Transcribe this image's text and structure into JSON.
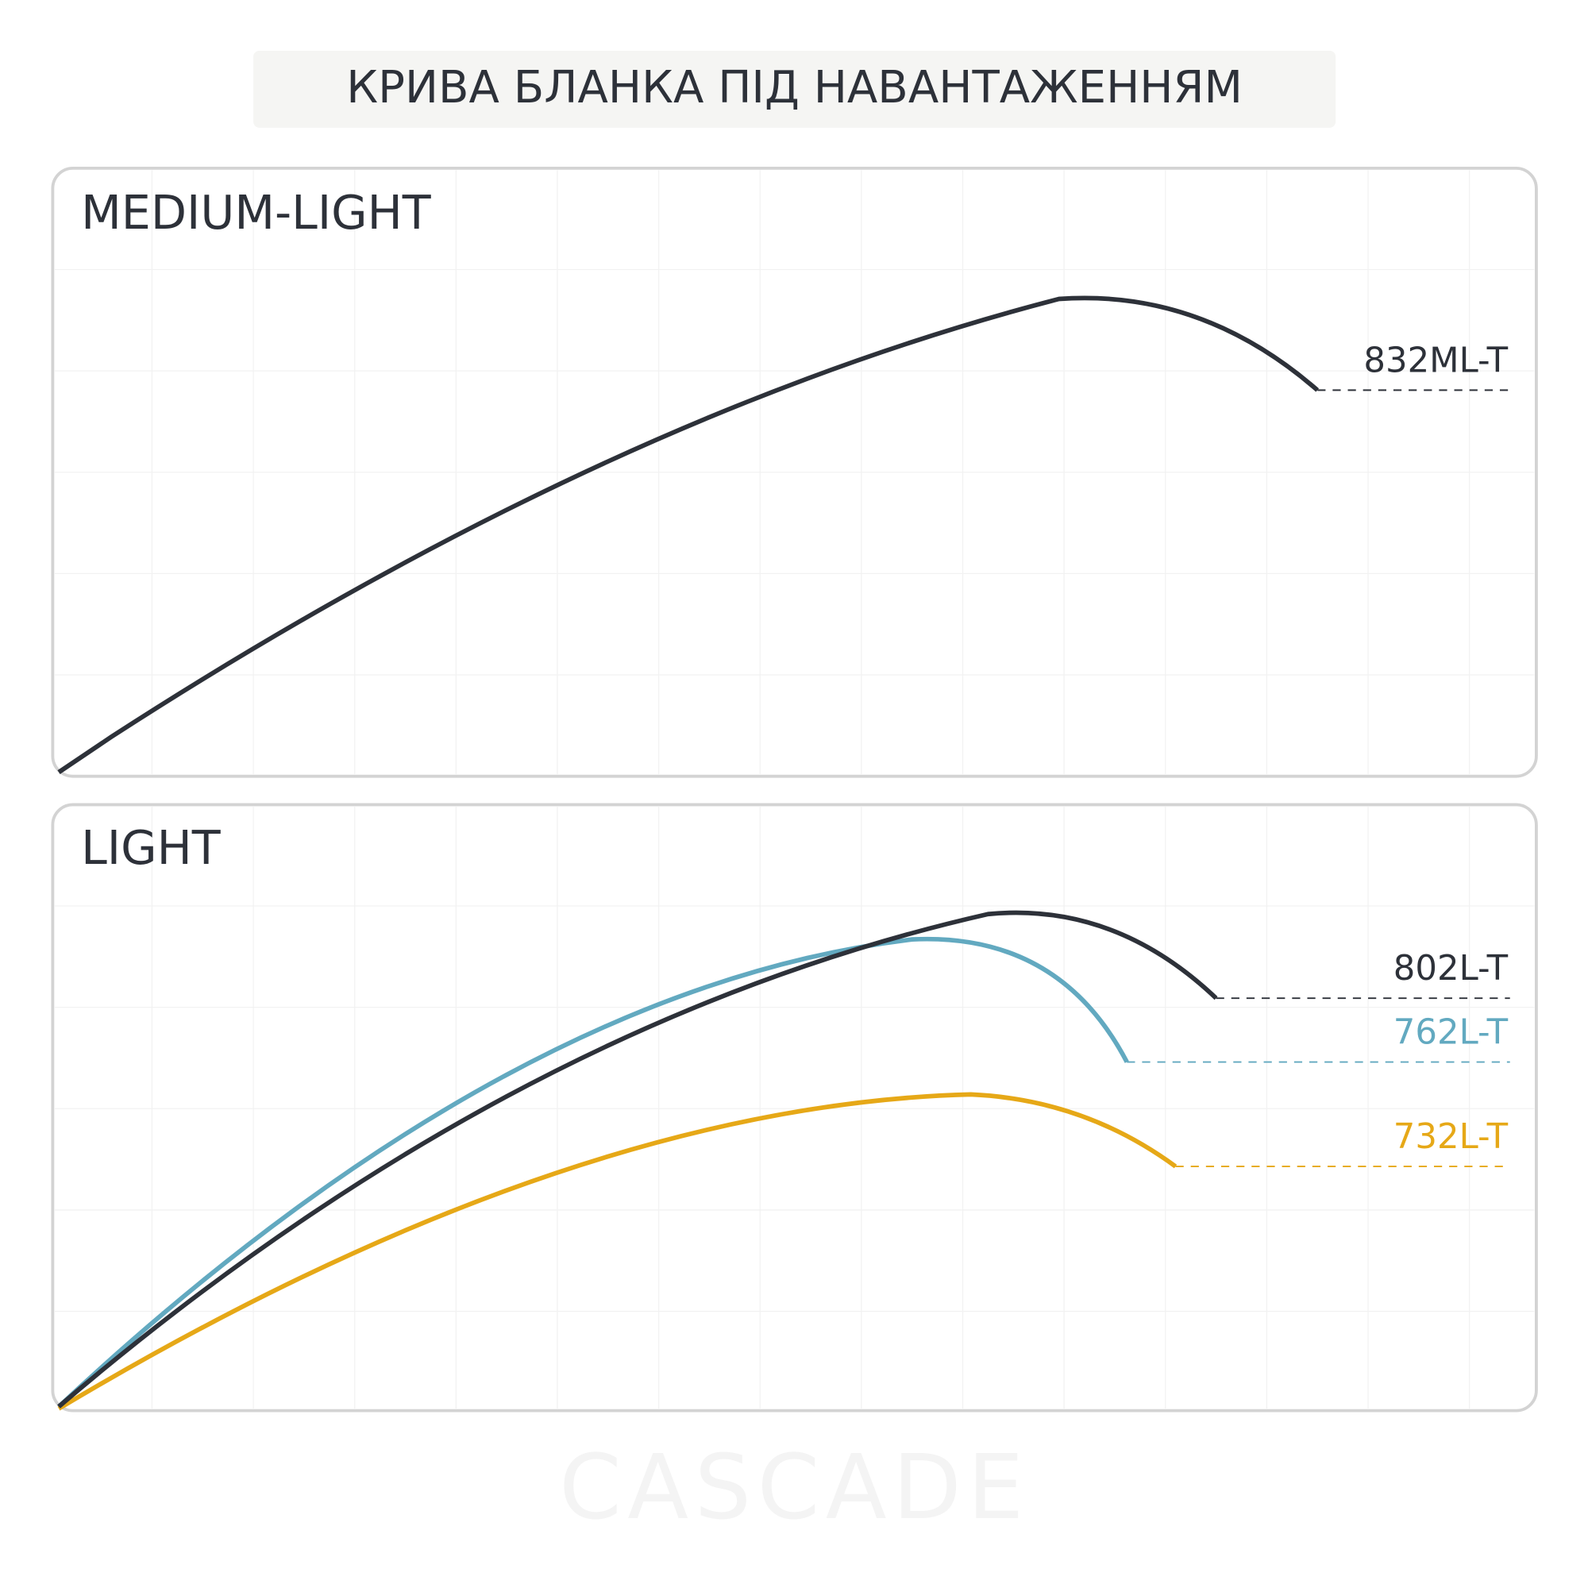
{
  "header": {
    "title": "КРИВА БЛАНКА ПІД НАВАНТАЖЕННЯМ"
  },
  "panels": [
    {
      "title": "MEDIUM-LIGHT",
      "curves": [
        {
          "label": "832ML-T"
        }
      ]
    },
    {
      "title": "LIGHT",
      "curves": [
        {
          "label": "802L-T"
        },
        {
          "label": "762L-T"
        },
        {
          "label": "732L-T"
        }
      ]
    }
  ],
  "footer": {
    "brand": "CASCADE"
  }
}
